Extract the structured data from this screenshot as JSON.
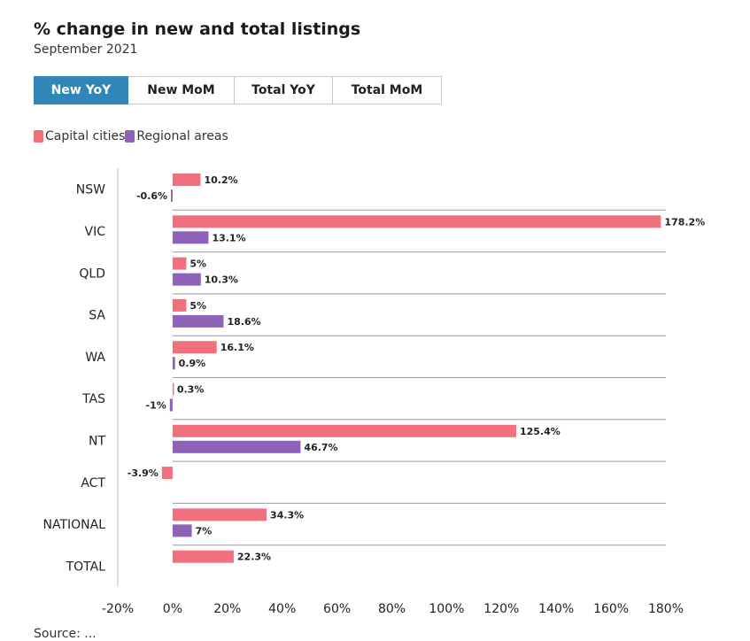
{
  "header": {
    "title": "% change in new and total listings",
    "subtitle": "September 2021"
  },
  "tabs": [
    {
      "label": "New YoY",
      "active": true
    },
    {
      "label": "New MoM",
      "active": false
    },
    {
      "label": "Total YoY",
      "active": false
    },
    {
      "label": "Total MoM",
      "active": false
    }
  ],
  "legend": [
    {
      "label": "Capital cities",
      "color": "#f0707e"
    },
    {
      "label": "Regional areas",
      "color": "#8e62b8"
    }
  ],
  "footer": {
    "text": "Source: ..."
  },
  "chart_data": {
    "type": "bar",
    "orientation": "horizontal",
    "categories": [
      "NSW",
      "VIC",
      "QLD",
      "SA",
      "WA",
      "TAS",
      "NT",
      "ACT",
      "NATIONAL",
      "TOTAL"
    ],
    "series": [
      {
        "name": "Capital cities",
        "color": "#f0707e",
        "values": [
          10.2,
          178.2,
          5,
          5,
          16.1,
          0.3,
          125.4,
          -3.9,
          34.3,
          22.3
        ],
        "labels": [
          "10.2%",
          "178.2%",
          "5%",
          "5%",
          "16.1%",
          "0.3%",
          "125.4%",
          "-3.9%",
          "34.3%",
          "22.3%"
        ]
      },
      {
        "name": "Regional areas",
        "color": "#8e62b8",
        "values": [
          -0.6,
          13.1,
          10.3,
          18.6,
          0.9,
          -1,
          46.7,
          null,
          7,
          null
        ],
        "labels": [
          "-0.6%",
          "13.1%",
          "10.3%",
          "18.6%",
          "0.9%",
          "-1%",
          "46.7%",
          "",
          "7%",
          ""
        ]
      }
    ],
    "xlim": [
      -20,
      180
    ],
    "xticks": [
      -20,
      0,
      20,
      40,
      60,
      80,
      100,
      120,
      140,
      160,
      180
    ],
    "xtick_labels": [
      "-20%",
      "0%",
      "20%",
      "40%",
      "60%",
      "80%",
      "100%",
      "120%",
      "140%",
      "160%",
      "180%"
    ]
  }
}
